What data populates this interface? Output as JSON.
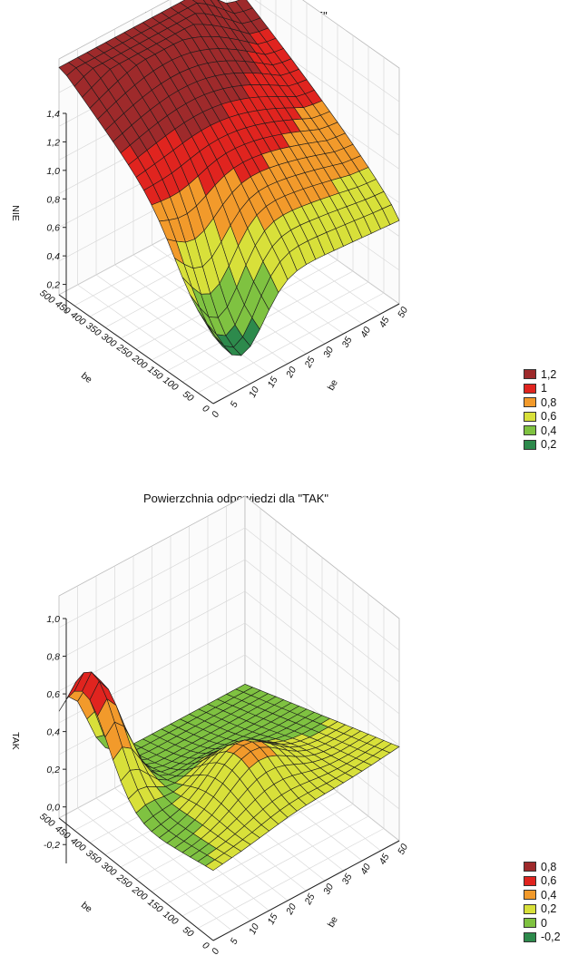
{
  "chart_data": [
    {
      "type": "surface",
      "title": "Powierzchnia odpowiedzi dla \"NIE\"",
      "zlabel": "NIE",
      "xlabel": "be",
      "ylabel": "be",
      "z_ticks": [
        "0,2",
        "0,4",
        "0,6",
        "0,8",
        "1,0",
        "1,2",
        "1,4"
      ],
      "z_range": [
        0.0,
        1.4
      ],
      "x_ticks": [
        "0",
        "50",
        "100",
        "150",
        "200",
        "250",
        "300",
        "350",
        "400",
        "450",
        "500"
      ],
      "x_range": [
        0,
        500
      ],
      "y_ticks": [
        "0",
        "5",
        "10",
        "15",
        "20",
        "25",
        "30",
        "35",
        "40",
        "45",
        "50"
      ],
      "y_range": [
        0,
        50
      ],
      "legend": [
        {
          "label": "1,2",
          "color": "#9e2a2b"
        },
        {
          "label": "1",
          "color": "#e0241f"
        },
        {
          "label": "0,8",
          "color": "#f29a2b"
        },
        {
          "label": "0,6",
          "color": "#d8e03a"
        },
        {
          "label": "0,4",
          "color": "#7fc241"
        },
        {
          "label": "0,2",
          "color": "#2d8a4c"
        }
      ]
    },
    {
      "type": "surface",
      "title": "Powierzchnia odpowiedzi dla \"TAK\"",
      "zlabel": "TAK",
      "xlabel": "be",
      "ylabel": "be",
      "z_ticks": [
        "-0,2",
        "0,0",
        "0,2",
        "0,4",
        "0,6",
        "0,8",
        "1,0"
      ],
      "z_range": [
        -0.3,
        1.0
      ],
      "x_ticks": [
        "0",
        "50",
        "100",
        "150",
        "200",
        "250",
        "300",
        "350",
        "400",
        "450",
        "500"
      ],
      "x_range": [
        0,
        500
      ],
      "y_ticks": [
        "0",
        "5",
        "10",
        "15",
        "20",
        "25",
        "30",
        "35",
        "40",
        "45",
        "50"
      ],
      "y_range": [
        0,
        50
      ],
      "legend": [
        {
          "label": "0,8",
          "color": "#9e2a2b"
        },
        {
          "label": "0,6",
          "color": "#e0241f"
        },
        {
          "label": "0,4",
          "color": "#f29a2b"
        },
        {
          "label": "0,2",
          "color": "#d8e03a"
        },
        {
          "label": "0",
          "color": "#7fc241"
        },
        {
          "label": "-0,2",
          "color": "#2d8a4c"
        }
      ]
    }
  ]
}
